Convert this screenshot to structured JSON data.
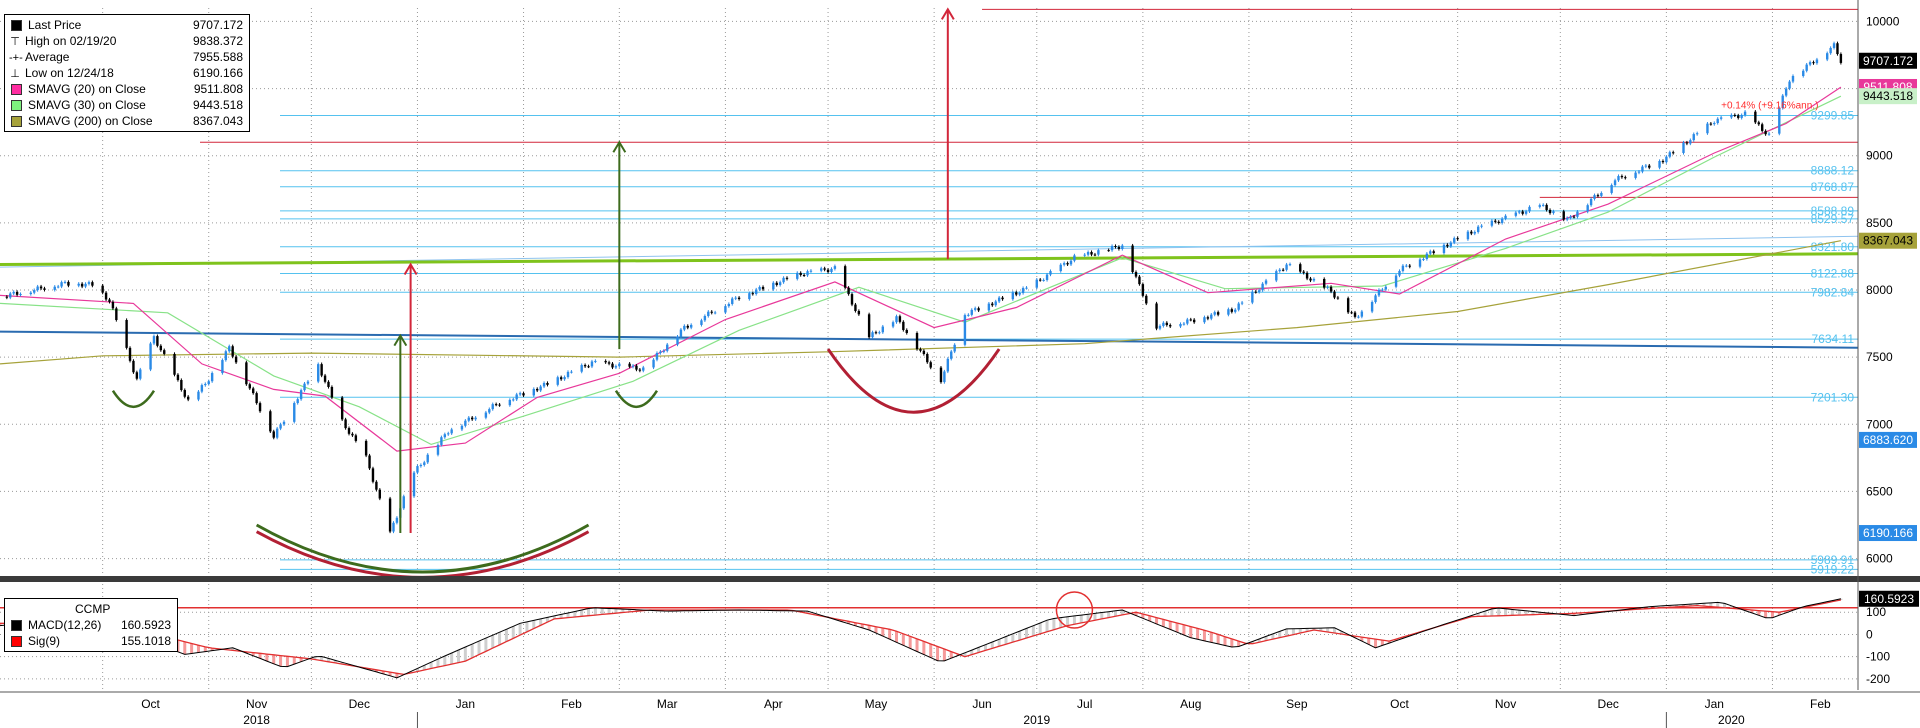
{
  "legend": {
    "items": [
      {
        "label": "Last Price",
        "value": "9707.172",
        "marker": "square",
        "color": "#000000"
      },
      {
        "label": "High on 02/19/20",
        "value": "9838.372",
        "marker": "high",
        "color": "#555555"
      },
      {
        "label": "Average",
        "value": "7955.588",
        "marker": "avg",
        "color": "#555555"
      },
      {
        "label": "Low on 12/24/18",
        "value": "6190.166",
        "marker": "low",
        "color": "#555555"
      },
      {
        "label": "SMAVG (20)  on Close",
        "value": "9511.808",
        "marker": "square",
        "color": "#ff2da1"
      },
      {
        "label": "SMAVG (30)  on Close",
        "value": "9443.518",
        "marker": "square",
        "color": "#7ef07e"
      },
      {
        "label": "SMAVG (200)  on Close",
        "value": "8367.043",
        "marker": "square",
        "color": "#a6a23a"
      }
    ]
  },
  "macd_legend": {
    "title": "CCMP",
    "items": [
      {
        "label": "MACD(12,26)",
        "value": "160.5923",
        "color": "#000000"
      },
      {
        "label": "Sig(9)",
        "value": "155.1018",
        "color": "#ff0000"
      }
    ]
  },
  "colors": {
    "candle_up": "#2a8ae6",
    "candle_down": "#000000",
    "sma20": "#e8389a",
    "sma30": "#88e288",
    "sma200": "#a6a23a",
    "red_line": "#d2263a",
    "green_line": "#7fc31c",
    "blue_line": "#2a6bb0",
    "light_blue": "#55c2ef"
  },
  "chart_data": [
    {
      "type": "candlestick",
      "title": "",
      "y_axis": {
        "ticks": [
          6000,
          6500,
          7000,
          7500,
          8000,
          8500,
          9000,
          9500,
          10000
        ],
        "tick_labels": [
          "6000",
          "6500",
          "7000",
          "7500",
          "8000",
          "8500",
          "9000",
          "9500",
          "10000"
        ],
        "range": [
          5900,
          10100
        ],
        "side": "right"
      },
      "x_axis": {
        "month_labels": [
          "Oct",
          "Nov",
          "Dec",
          "Jan",
          "Feb",
          "Mar",
          "Apr",
          "May",
          "Jun",
          "Jul",
          "Aug",
          "Sep",
          "Oct",
          "Nov",
          "Dec",
          "Jan",
          "Feb"
        ],
        "month_dates": [
          "2018-10-15",
          "2018-11-15",
          "2018-12-15",
          "2019-01-15",
          "2019-02-15",
          "2019-03-15",
          "2019-04-15",
          "2019-05-15",
          "2019-06-15",
          "2019-07-15",
          "2019-08-15",
          "2019-09-15",
          "2019-10-15",
          "2019-11-15",
          "2019-12-15",
          "2020-01-15",
          "2020-02-15"
        ],
        "year_labels": [
          "2018",
          "2019",
          "2020"
        ],
        "year_dates": [
          "2018-11-15",
          "2019-07-01",
          "2020-01-20"
        ],
        "range": [
          "2018-09-01",
          "2020-02-26"
        ],
        "grid": true
      },
      "price_path": [
        [
          "2018-09-01",
          7950
        ],
        [
          "2018-09-20",
          8050
        ],
        [
          "2018-09-28",
          8040
        ],
        [
          "2018-10-03",
          7920
        ],
        [
          "2018-10-11",
          7330
        ],
        [
          "2018-10-16",
          7650
        ],
        [
          "2018-10-26",
          7170
        ],
        [
          "2018-10-31",
          7300
        ],
        [
          "2018-11-07",
          7570
        ],
        [
          "2018-11-20",
          6910
        ],
        [
          "2018-11-30",
          7330
        ],
        [
          "2018-12-03",
          7440
        ],
        [
          "2018-12-10",
          7020
        ],
        [
          "2018-12-17",
          6750
        ],
        [
          "2018-12-24",
          6190
        ],
        [
          "2018-12-31",
          6640
        ],
        [
          "2019-01-10",
          6950
        ],
        [
          "2019-01-25",
          7160
        ],
        [
          "2019-02-08",
          7300
        ],
        [
          "2019-02-21",
          7460
        ],
        [
          "2019-03-08",
          7410
        ],
        [
          "2019-03-20",
          7720
        ],
        [
          "2019-04-05",
          7950
        ],
        [
          "2019-04-23",
          8120
        ],
        [
          "2019-05-03",
          8160
        ],
        [
          "2019-05-13",
          7650
        ],
        [
          "2019-05-21",
          7790
        ],
        [
          "2019-06-03",
          7330
        ],
        [
          "2019-06-10",
          7820
        ],
        [
          "2019-06-28",
          8010
        ],
        [
          "2019-07-12",
          8240
        ],
        [
          "2019-07-26",
          8330
        ],
        [
          "2019-08-05",
          7730
        ],
        [
          "2019-08-15",
          7770
        ],
        [
          "2019-08-28",
          7860
        ],
        [
          "2019-09-12",
          8190
        ],
        [
          "2019-09-25",
          7990
        ],
        [
          "2019-10-02",
          7790
        ],
        [
          "2019-10-15",
          8150
        ],
        [
          "2019-10-28",
          8330
        ],
        [
          "2019-11-08",
          8470
        ],
        [
          "2019-11-25",
          8630
        ],
        [
          "2019-12-03",
          8520
        ],
        [
          "2019-12-17",
          8820
        ],
        [
          "2019-12-31",
          8970
        ],
        [
          "2020-01-15",
          9260
        ],
        [
          "2020-01-24",
          9310
        ],
        [
          "2020-01-31",
          9150
        ],
        [
          "2020-02-06",
          9570
        ],
        [
          "2020-02-19",
          9820
        ],
        [
          "2020-02-21",
          9707
        ]
      ],
      "sma20_path": [
        [
          "2018-09-01",
          7960
        ],
        [
          "2018-10-10",
          7900
        ],
        [
          "2018-10-30",
          7450
        ],
        [
          "2018-11-20",
          7260
        ],
        [
          "2018-12-05",
          7210
        ],
        [
          "2018-12-26",
          6800
        ],
        [
          "2019-01-15",
          6860
        ],
        [
          "2019-02-05",
          7200
        ],
        [
          "2019-03-01",
          7380
        ],
        [
          "2019-04-01",
          7780
        ],
        [
          "2019-05-03",
          8060
        ],
        [
          "2019-06-01",
          7720
        ],
        [
          "2019-06-25",
          7870
        ],
        [
          "2019-07-26",
          8260
        ],
        [
          "2019-08-20",
          7980
        ],
        [
          "2019-09-25",
          8050
        ],
        [
          "2019-10-15",
          7970
        ],
        [
          "2019-11-15",
          8380
        ],
        [
          "2019-12-15",
          8640
        ],
        [
          "2020-01-15",
          9020
        ],
        [
          "2020-02-05",
          9240
        ],
        [
          "2020-02-21",
          9511
        ]
      ],
      "sma30_path": [
        [
          "2018-09-01",
          7900
        ],
        [
          "2018-10-20",
          7830
        ],
        [
          "2018-11-20",
          7360
        ],
        [
          "2018-12-15",
          7130
        ],
        [
          "2019-01-05",
          6850
        ],
        [
          "2019-02-01",
          7060
        ],
        [
          "2019-03-05",
          7320
        ],
        [
          "2019-04-05",
          7700
        ],
        [
          "2019-05-10",
          8020
        ],
        [
          "2019-06-10",
          7760
        ],
        [
          "2019-07-26",
          8240
        ],
        [
          "2019-08-25",
          8010
        ],
        [
          "2019-10-10",
          8030
        ],
        [
          "2019-11-15",
          8310
        ],
        [
          "2019-12-15",
          8580
        ],
        [
          "2020-01-15",
          8990
        ],
        [
          "2020-02-21",
          9443
        ]
      ],
      "sma200_path": [
        [
          "2018-09-01",
          7450
        ],
        [
          "2018-10-01",
          7510
        ],
        [
          "2018-12-01",
          7530
        ],
        [
          "2019-03-01",
          7500
        ],
        [
          "2019-05-01",
          7540
        ],
        [
          "2019-07-15",
          7600
        ],
        [
          "2019-09-15",
          7720
        ],
        [
          "2019-11-01",
          7840
        ],
        [
          "2019-12-15",
          8040
        ],
        [
          "2020-02-21",
          8367
        ]
      ],
      "horizontal_levels": [
        {
          "value": 9299.85,
          "label": "9299.85"
        },
        {
          "value": 8888.12,
          "label": "8888.12"
        },
        {
          "value": 8768.87,
          "label": "8768.87"
        },
        {
          "value": 8588.89,
          "label": "8588.89"
        },
        {
          "value": 8529.57,
          "label": "8529.57"
        },
        {
          "value": 8321.8,
          "label": "8321.80"
        },
        {
          "value": 8122.88,
          "label": "8122.88"
        },
        {
          "value": 7982.84,
          "label": "7982.84"
        },
        {
          "value": 7634.11,
          "label": "7634.11"
        },
        {
          "value": 7201.3,
          "label": "7201.30"
        },
        {
          "value": 5989.91,
          "label": "5989.91"
        },
        {
          "value": 5919.22,
          "label": "5919.22"
        }
      ],
      "right_badges": [
        {
          "value": 9707.172,
          "label": "9707.172",
          "bg": "#000000",
          "fg": "#ffffff"
        },
        {
          "value": 9511.808,
          "label": "9511.808",
          "bg": "#e8389a",
          "fg": "#ffffff"
        },
        {
          "value": 9443.518,
          "label": "9443.518",
          "bg": "#c8f0c8",
          "fg": "#000000"
        },
        {
          "value": 8367.043,
          "label": "8367.043",
          "bg": "#a6a23a",
          "fg": "#000000"
        },
        {
          "value": 6883.62,
          "label": "6883.620",
          "bg": "#2a8ae6",
          "fg": "#ffffff"
        },
        {
          "value": 6190.166,
          "label": "6190.166",
          "bg": "#2a8ae6",
          "fg": "#ffffff"
        }
      ],
      "annotation": "+0.14% (+9.16%ann.)",
      "annotation_value": 9380
    },
    {
      "type": "line",
      "title": "CCMP",
      "y_axis": {
        "ticks": [
          -200,
          -100,
          0,
          100
        ],
        "tick_labels": [
          "-200",
          "-100",
          "0",
          "100"
        ],
        "range": [
          -250,
          200
        ]
      },
      "macd_path": [
        [
          "2018-09-01",
          40
        ],
        [
          "2018-09-25",
          70
        ],
        [
          "2018-10-05",
          30
        ],
        [
          "2018-10-25",
          -90
        ],
        [
          "2018-11-08",
          -60
        ],
        [
          "2018-11-23",
          -150
        ],
        [
          "2018-12-03",
          -95
        ],
        [
          "2018-12-18",
          -160
        ],
        [
          "2018-12-26",
          -195
        ],
        [
          "2019-01-10",
          -90
        ],
        [
          "2019-01-31",
          50
        ],
        [
          "2019-02-21",
          120
        ],
        [
          "2019-03-15",
          105
        ],
        [
          "2019-04-05",
          110
        ],
        [
          "2019-04-25",
          105
        ],
        [
          "2019-05-13",
          20
        ],
        [
          "2019-06-03",
          -125
        ],
        [
          "2019-06-17",
          -40
        ],
        [
          "2019-07-05",
          70
        ],
        [
          "2019-07-26",
          110
        ],
        [
          "2019-08-15",
          -15
        ],
        [
          "2019-08-28",
          -60
        ],
        [
          "2019-09-12",
          25
        ],
        [
          "2019-09-26",
          30
        ],
        [
          "2019-10-08",
          -60
        ],
        [
          "2019-10-25",
          30
        ],
        [
          "2019-11-12",
          120
        ],
        [
          "2019-12-05",
          85
        ],
        [
          "2019-12-27",
          125
        ],
        [
          "2020-01-17",
          145
        ],
        [
          "2020-01-31",
          70
        ],
        [
          "2020-02-10",
          125
        ],
        [
          "2020-02-21",
          160.59
        ]
      ],
      "signal_path": [
        [
          "2018-09-01",
          50
        ],
        [
          "2018-10-05",
          45
        ],
        [
          "2018-11-01",
          -60
        ],
        [
          "2018-12-01",
          -110
        ],
        [
          "2018-12-28",
          -180
        ],
        [
          "2019-01-15",
          -120
        ],
        [
          "2019-02-10",
          70
        ],
        [
          "2019-03-10",
          110
        ],
        [
          "2019-04-20",
          110
        ],
        [
          "2019-05-20",
          20
        ],
        [
          "2019-06-10",
          -100
        ],
        [
          "2019-07-10",
          40
        ],
        [
          "2019-07-30",
          100
        ],
        [
          "2019-08-20",
          15
        ],
        [
          "2019-09-01",
          -45
        ],
        [
          "2019-09-20",
          20
        ],
        [
          "2019-10-12",
          -30
        ],
        [
          "2019-11-05",
          80
        ],
        [
          "2019-12-05",
          95
        ],
        [
          "2020-01-10",
          130
        ],
        [
          "2020-02-03",
          100
        ],
        [
          "2020-02-21",
          155.1
        ]
      ],
      "signal_level": 120,
      "right_badge": {
        "value": 160.5923,
        "label": "160.5923",
        "bg": "#000000",
        "fg": "#ffffff"
      }
    }
  ]
}
